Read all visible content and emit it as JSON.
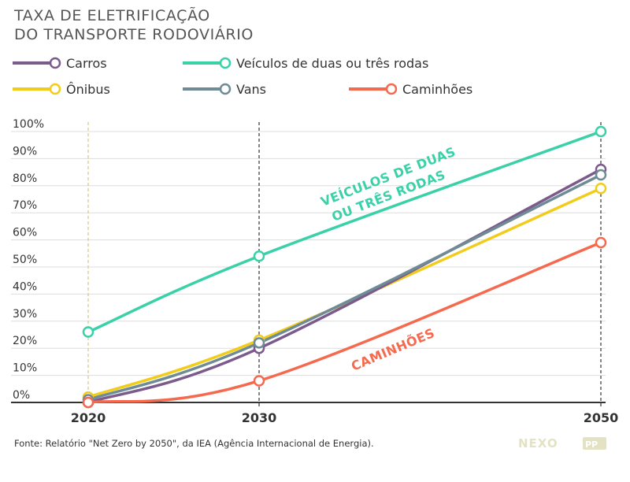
{
  "title_line1": "TAXA DE ELETRIFICAÇÃO",
  "title_line2": "DO TRANSPORTE RODOVIÁRIO",
  "source": "Fonte: Relatório \"Net Zero by 2050\", da IEA (Agência Internacional de Energia).",
  "logo": "NEXO",
  "logo_badge": "PP",
  "colors": {
    "carros": "#7b5a8c",
    "duas_tres_rodas": "#3bd1a8",
    "onibus": "#f2cc1b",
    "vans": "#6f8c96",
    "caminhoes": "#f56a4f",
    "grid": "#dddddd",
    "axis": "#333333"
  },
  "chart_data": {
    "type": "line",
    "x": [
      2020,
      2030,
      2050
    ],
    "xlim": [
      2020,
      2050
    ],
    "ylim": [
      0,
      100
    ],
    "y_ticks": [
      "0%",
      "10%",
      "20%",
      "30%",
      "40%",
      "50%",
      "60%",
      "70%",
      "80%",
      "90%",
      "100%"
    ],
    "x_ticks": [
      "2020",
      "2030",
      "2050"
    ],
    "grid": "horizontal",
    "legend_placement": "top",
    "series": [
      {
        "key": "carros",
        "name": "Carros",
        "values": [
          0,
          20,
          86
        ]
      },
      {
        "key": "duas_tres_rodas",
        "name": "Veículos de duas ou três rodas",
        "values": [
          26,
          54,
          100
        ]
      },
      {
        "key": "onibus",
        "name": "Ônibus",
        "values": [
          2,
          23,
          79
        ]
      },
      {
        "key": "vans",
        "name": "Vans",
        "values": [
          1,
          22,
          84
        ]
      },
      {
        "key": "caminhoes",
        "name": "Caminhões",
        "values": [
          0,
          8,
          59
        ]
      }
    ],
    "annotations": {
      "duas_tres_rodas_line1": "VEÍCULOS DE DUAS",
      "duas_tres_rodas_line2": "OU TRÊS RODAS",
      "caminhoes": "CAMINHÕES"
    }
  }
}
